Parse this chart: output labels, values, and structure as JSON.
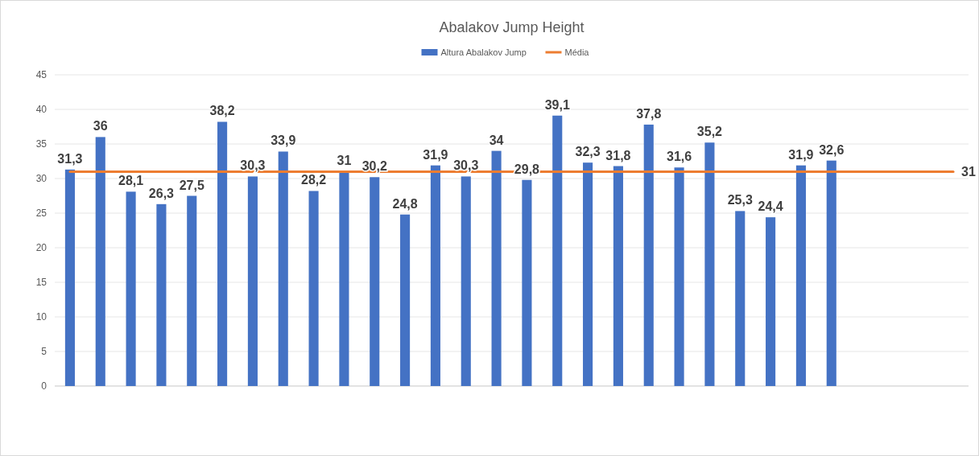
{
  "chart_data": {
    "type": "bar",
    "title": "Abalakov Jump Height",
    "categories": [
      null,
      null,
      null,
      null,
      null,
      null,
      null,
      null,
      null,
      null,
      null,
      null,
      null,
      null,
      null,
      null,
      null,
      null,
      null,
      null,
      null,
      null,
      null,
      null,
      null,
      null,
      null,
      null,
      null,
      null
    ],
    "series": [
      {
        "name": "Altura Abalakov Jump",
        "color": "#4472c4",
        "values": [
          31.3,
          36,
          28.1,
          26.3,
          27.5,
          38.2,
          30.3,
          33.9,
          28.2,
          31,
          30.2,
          24.8,
          31.9,
          30.3,
          34,
          29.8,
          39.1,
          32.3,
          31.8,
          37.8,
          31.6,
          35.2,
          25.3,
          24.4,
          31.9,
          32.6,
          null,
          null,
          null,
          null
        ],
        "value_labels": [
          "31,3",
          "36",
          "28,1",
          "26,3",
          "27,5",
          "38,2",
          "30,3",
          "33,9",
          "28,2",
          "31",
          "30,2",
          "24,8",
          "31,9",
          "30,3",
          "34",
          "29,8",
          "39,1",
          "32,3",
          "31,8",
          "37,8",
          "31,6",
          "35,2",
          "25,3",
          "24,4",
          "31,9",
          "32,6",
          null,
          null,
          null,
          null
        ]
      },
      {
        "name": "Média",
        "type": "line",
        "color": "#ed7d31",
        "values": [
          31,
          31,
          31,
          31,
          31,
          31,
          31,
          31,
          31,
          31,
          31,
          31,
          31,
          31,
          31,
          31,
          31,
          31,
          31,
          31,
          31,
          31,
          31,
          31,
          31,
          31,
          31,
          31,
          31,
          31
        ],
        "value_labels": [
          null,
          null,
          null,
          null,
          null,
          null,
          null,
          null,
          null,
          null,
          null,
          null,
          null,
          null,
          null,
          null,
          null,
          null,
          null,
          null,
          null,
          null,
          null,
          null,
          null,
          null,
          null,
          null,
          null,
          "31"
        ]
      }
    ],
    "ylim": [
      0,
      45
    ],
    "yticks": [
      0,
      5,
      10,
      15,
      20,
      25,
      30,
      35,
      40,
      45
    ],
    "grid": "y",
    "legend": "top",
    "tick_labels": "y"
  }
}
